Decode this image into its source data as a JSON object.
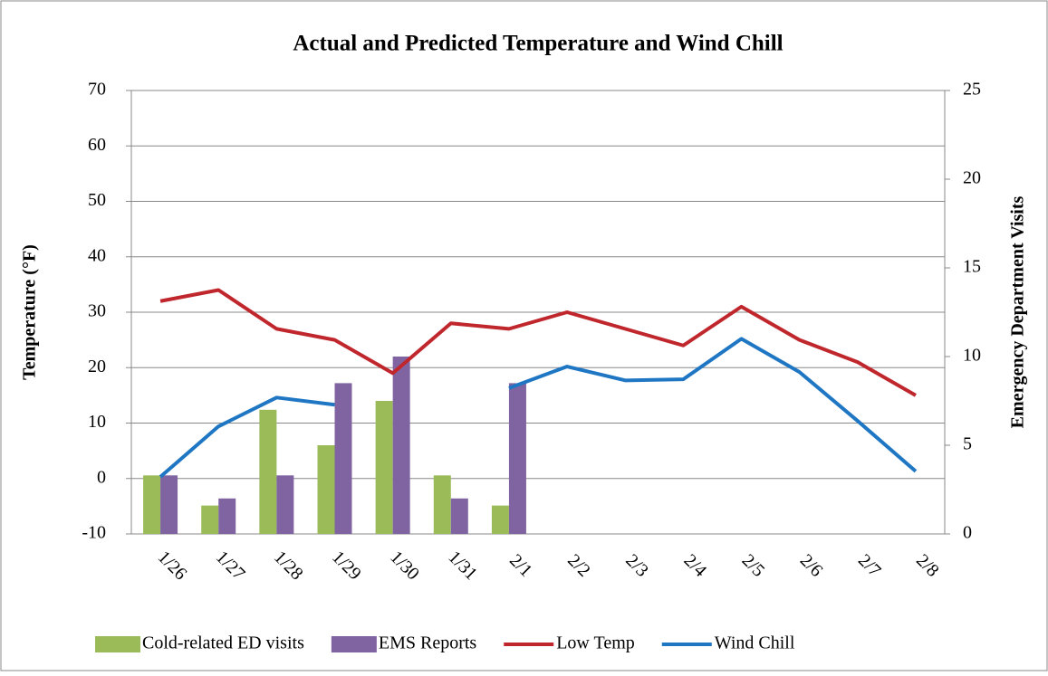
{
  "chart_data": {
    "type": "bar",
    "title": "Actual and Predicted Temperature and Wind Chill",
    "ylabel": "Temperature (°F)",
    "y2label": "Emergency Department Visits",
    "categories": [
      "1/26",
      "1/27",
      "1/28",
      "1/29",
      "1/30",
      "1/31",
      "2/1",
      "2/2",
      "2/3",
      "2/4",
      "2/5",
      "2/6",
      "2/7",
      "2/8"
    ],
    "ylim": [
      -10,
      70
    ],
    "yticks": [
      -10,
      0,
      10,
      20,
      30,
      40,
      50,
      60,
      70
    ],
    "y2lim": [
      0,
      25
    ],
    "y2ticks": [
      0,
      5,
      10,
      15,
      20,
      25
    ],
    "grid": true,
    "legend": "bottom",
    "series": [
      {
        "name": "Cold-related ED visits",
        "type": "bar",
        "axis": "y2",
        "color": "#9bbb59",
        "values": [
          3.3,
          1.6,
          7.0,
          5.0,
          7.5,
          3.3,
          1.6,
          null,
          null,
          null,
          null,
          null,
          null,
          null
        ]
      },
      {
        "name": "EMS Reports",
        "type": "bar",
        "axis": "y2",
        "color": "#8064a2",
        "values": [
          3.3,
          2.0,
          3.3,
          8.5,
          10.0,
          2.0,
          8.5,
          null,
          null,
          null,
          null,
          null,
          null,
          null
        ]
      },
      {
        "name": "Low Temp",
        "type": "line",
        "color": "#c0272d",
        "values": [
          32,
          34,
          27,
          25,
          19,
          28,
          27,
          30,
          27,
          24,
          31,
          25,
          21,
          15
        ]
      },
      {
        "name": "Wind Chill",
        "type": "line",
        "color": "#1f77c4",
        "values": [
          0.3,
          9.4,
          14.6,
          13.3,
          null,
          null,
          16.3,
          20.2,
          17.7,
          17.9,
          25.2,
          19.2,
          10.4,
          1.3
        ]
      }
    ]
  }
}
